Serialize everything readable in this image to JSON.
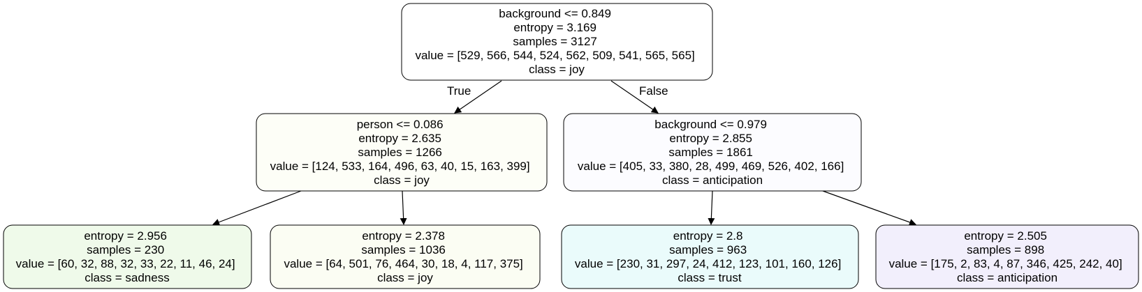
{
  "nodes": {
    "root": {
      "lines": [
        "background <= 0.849",
        "entropy = 3.169",
        "samples = 3127",
        "value = [529, 566, 544, 524, 562, 509, 541, 565, 565]",
        "class = joy"
      ],
      "fill": "#ffffff"
    },
    "left": {
      "lines": [
        "person <= 0.086",
        "entropy = 2.635",
        "samples = 1266",
        "value = [124, 533, 164, 496, 63, 40, 15, 163, 399]",
        "class = joy"
      ],
      "fill": "#fdfef7"
    },
    "right": {
      "lines": [
        "background <= 0.979",
        "entropy = 2.855",
        "samples = 1861",
        "value = [405, 33, 380, 28, 499, 469, 526, 402, 166]",
        "class = anticipation"
      ],
      "fill": "#fcfcff"
    },
    "leaf_ll": {
      "lines": [
        "entropy = 2.956",
        "samples = 230",
        "value = [60, 32, 88, 32, 33, 22, 11, 46, 24]",
        "class = sadness"
      ],
      "fill": "#effaea"
    },
    "leaf_lr": {
      "lines": [
        "entropy = 2.378",
        "samples = 1036",
        "value = [64, 501, 76, 464, 30, 18, 4, 117, 375]",
        "class = joy"
      ],
      "fill": "#fbfdf3"
    },
    "leaf_rl": {
      "lines": [
        "entropy = 2.8",
        "samples = 963",
        "value = [230, 31, 297, 24, 412, 123, 101, 160, 126]",
        "class = trust"
      ],
      "fill": "#eafbfb"
    },
    "leaf_rr": {
      "lines": [
        "entropy = 2.505",
        "samples = 898",
        "value = [175, 2, 83, 4, 87, 346, 425, 242, 40]",
        "class = anticipation"
      ],
      "fill": "#f2effc"
    }
  },
  "edges": {
    "true_label": "True",
    "false_label": "False"
  }
}
